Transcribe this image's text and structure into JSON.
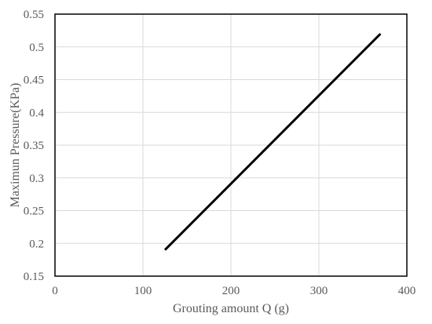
{
  "chart_data": {
    "type": "line",
    "title": "",
    "xlabel": "Grouting amount Q (g)",
    "ylabel": "Maximun Pressure(KPa)",
    "xlim": [
      0,
      400
    ],
    "ylim": [
      0.15,
      0.55
    ],
    "x_ticks": [
      "0",
      "100",
      "200",
      "300",
      "400"
    ],
    "y_ticks": [
      "0.15",
      "0.2",
      "0.25",
      "0.3",
      "0.35",
      "0.4",
      "0.45",
      "0.5",
      "0.55"
    ],
    "grid": true,
    "legend": "none",
    "series": [
      {
        "x": [
          125,
          370
        ],
        "y": [
          0.19,
          0.52
        ],
        "color": "#000000"
      }
    ]
  }
}
